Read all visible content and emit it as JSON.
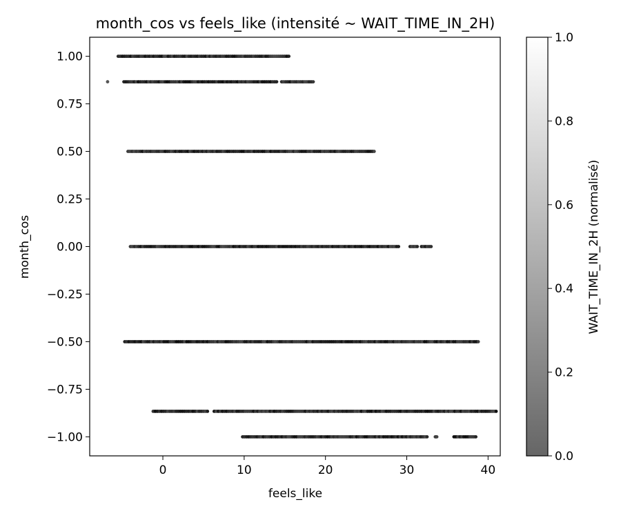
{
  "chart_data": {
    "type": "scatter",
    "title": "month_cos vs feels_like (intensité ~ WAIT_TIME_IN_2H)",
    "xlabel": "feels_like",
    "ylabel": "month_cos",
    "xlim": [
      -9,
      41.5
    ],
    "ylim": [
      -1.1,
      1.1
    ],
    "xticks": [
      0,
      10,
      20,
      30,
      40
    ],
    "xtick_labels": [
      "0",
      "10",
      "20",
      "30",
      "40"
    ],
    "yticks": [
      1.0,
      0.75,
      0.5,
      0.25,
      0.0,
      -0.25,
      -0.5,
      -0.75,
      -1.0
    ],
    "ytick_labels": [
      "1.00",
      "0.75",
      "0.50",
      "0.25",
      "0.00",
      "−0.25",
      "−0.50",
      "−0.75",
      "−1.00"
    ],
    "grid": false,
    "colormap": "gray (alpha 0.6)",
    "colorbar": {
      "label": "WAIT_TIME_IN_2H (normalisé)",
      "range": [
        0.0,
        1.0
      ],
      "ticks": [
        0.0,
        0.2,
        0.4,
        0.6,
        0.8,
        1.0
      ],
      "tick_labels": [
        "0.0",
        "0.2",
        "0.4",
        "0.6",
        "0.8",
        "1.0"
      ],
      "color_low": "#666666",
      "color_high": "#ffffff"
    },
    "series": [
      {
        "y": 1.0,
        "segments": [
          [
            -5.5,
            15.5
          ]
        ]
      },
      {
        "y": 0.866,
        "segments": [
          [
            -6.8,
            -6.8
          ],
          [
            -4.8,
            14.0
          ],
          [
            14.6,
            18.5
          ]
        ]
      },
      {
        "y": 0.5,
        "segments": [
          [
            -4.3,
            26.0
          ]
        ]
      },
      {
        "y": 0.0,
        "segments": [
          [
            -4.0,
            29.0
          ],
          [
            30.4,
            31.3
          ],
          [
            31.8,
            33.0
          ]
        ]
      },
      {
        "y": -0.5,
        "segments": [
          [
            -4.7,
            38.8
          ]
        ]
      },
      {
        "y": -0.866,
        "segments": [
          [
            -1.2,
            5.5
          ],
          [
            6.3,
            41.0
          ]
        ]
      },
      {
        "y": -1.0,
        "segments": [
          [
            9.8,
            32.5
          ],
          [
            33.5,
            33.7
          ],
          [
            35.8,
            38.5
          ]
        ]
      }
    ]
  }
}
